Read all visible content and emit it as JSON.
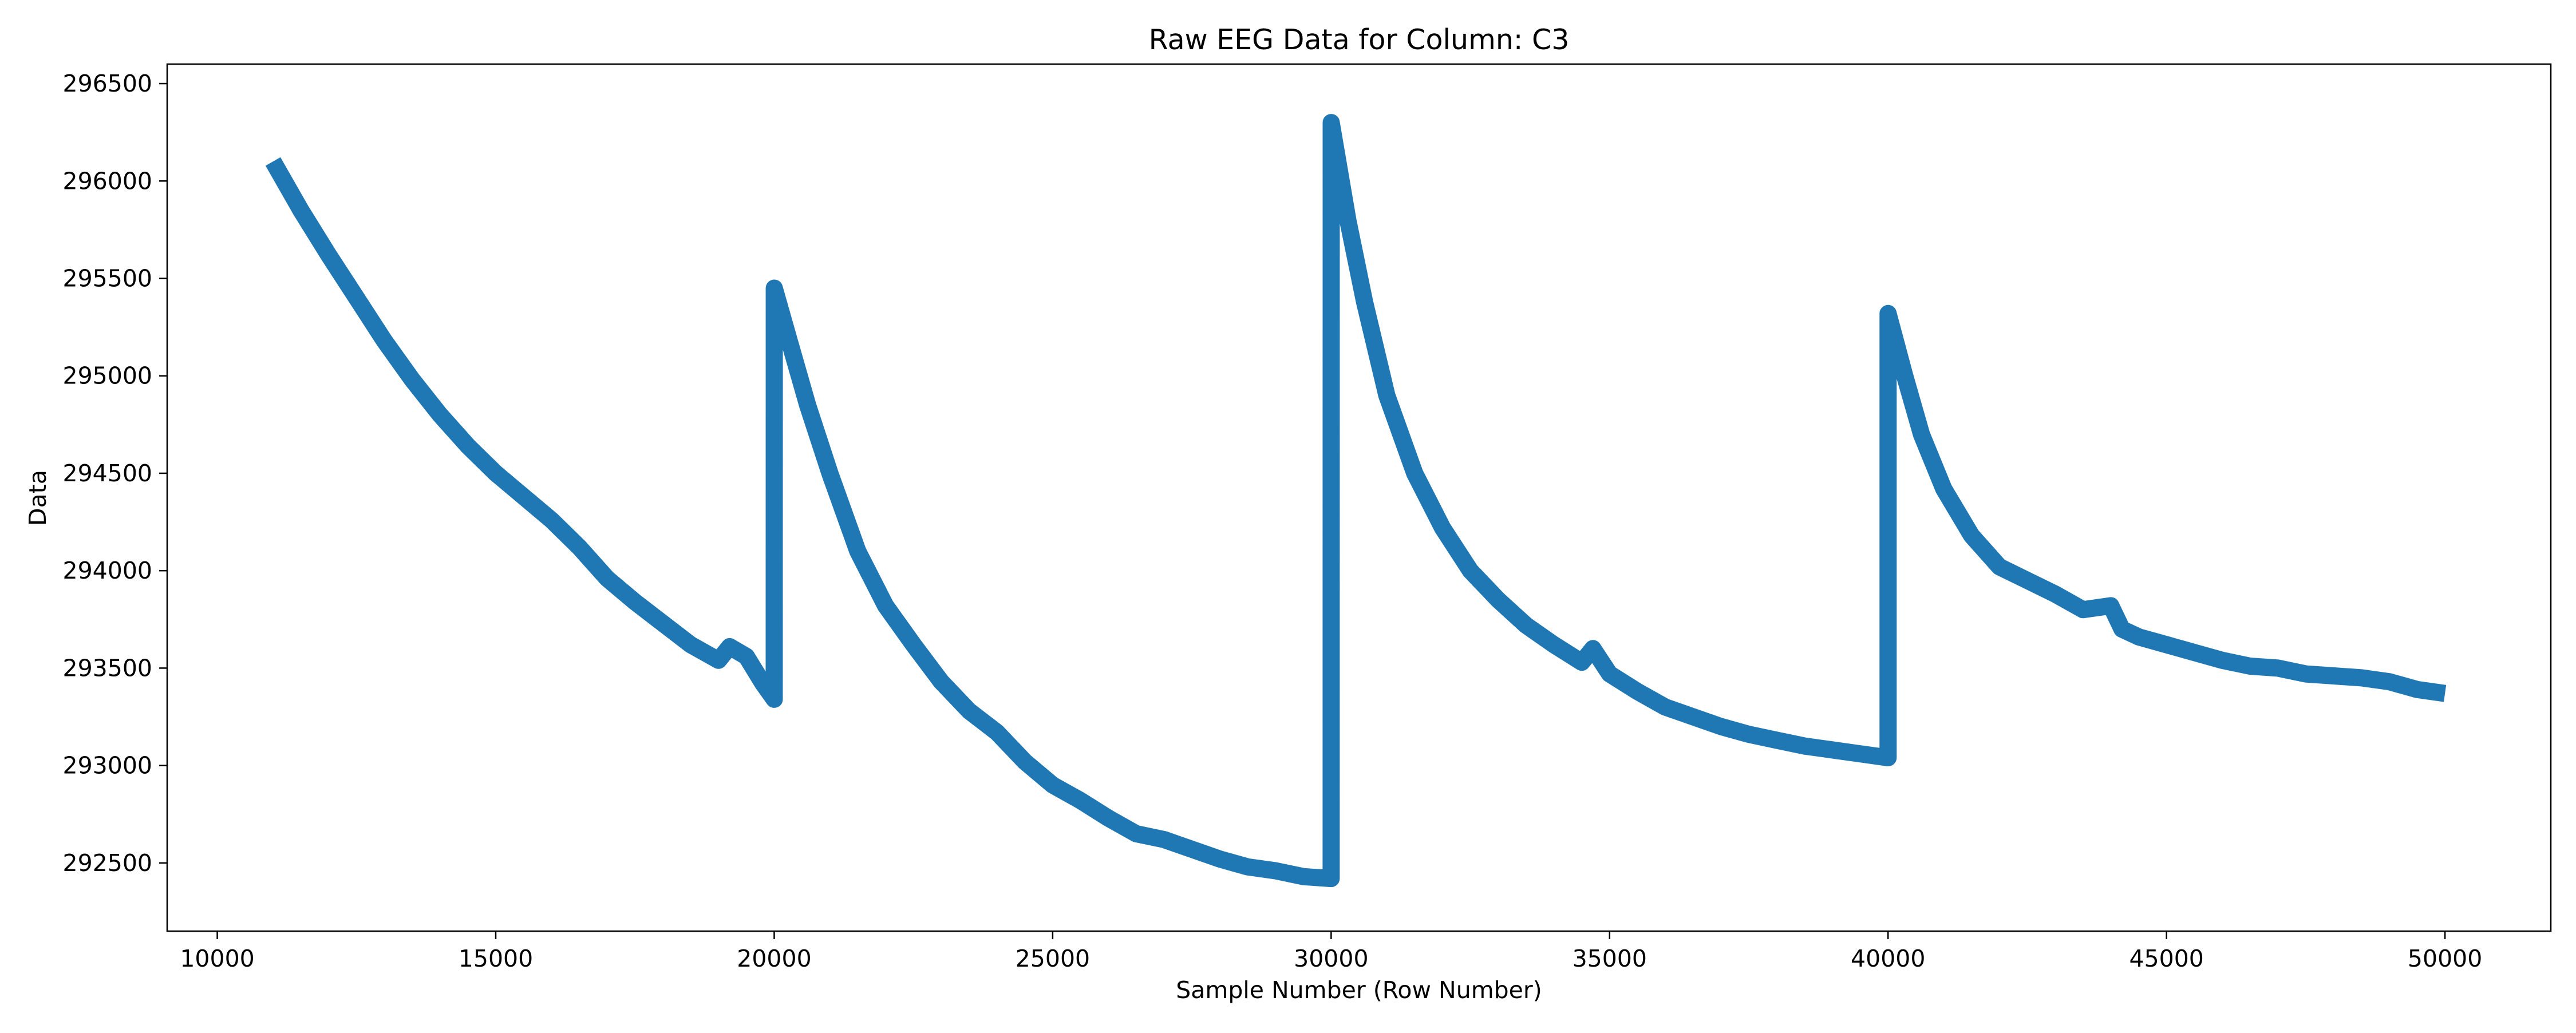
{
  "chart_data": {
    "type": "line",
    "title": "Raw EEG Data for Column: C3",
    "xlabel": "Sample Number (Row Number)",
    "ylabel": "Data",
    "xlim": [
      9100,
      51900
    ],
    "ylim": [
      292150,
      296600
    ],
    "x_ticks": [
      10000,
      15000,
      20000,
      25000,
      30000,
      35000,
      40000,
      45000,
      50000
    ],
    "y_ticks": [
      292500,
      293000,
      293500,
      294000,
      294500,
      295000,
      295500,
      296000,
      296500
    ],
    "grid": false,
    "line_color": "#1f77b4",
    "series": [
      {
        "x": [
          11000,
          11500,
          12000,
          12500,
          13000,
          13500,
          14000,
          14500,
          15000,
          15500,
          16000,
          16500,
          17000,
          17500,
          18000,
          18500,
          19000,
          19200,
          19500,
          19800,
          20000,
          20001,
          20300,
          20600,
          21000,
          21500,
          22000,
          22500,
          23000,
          23500,
          24000,
          24500,
          25000,
          25500,
          26000,
          26500,
          27000,
          27500,
          28000,
          28500,
          29000,
          29500,
          30000,
          30001,
          30300,
          30600,
          31000,
          31500,
          32000,
          32500,
          33000,
          33500,
          34000,
          34500,
          34700,
          35000,
          35500,
          36000,
          36500,
          37000,
          37500,
          38000,
          38500,
          39000,
          39500,
          40000,
          40001,
          40300,
          40600,
          41000,
          41500,
          42000,
          42500,
          43000,
          43500,
          44000,
          44200,
          44500,
          45000,
          45500,
          46000,
          46500,
          47000,
          47500,
          48000,
          48500,
          49000,
          49500,
          50000
        ],
        "y": [
          296100,
          295850,
          295620,
          295400,
          295180,
          294980,
          294800,
          294640,
          294500,
          294380,
          294260,
          294120,
          293960,
          293840,
          293730,
          293620,
          293540,
          293610,
          293560,
          293420,
          293340,
          295450,
          295150,
          294850,
          294500,
          294100,
          293820,
          293620,
          293430,
          293280,
          293170,
          293020,
          292900,
          292820,
          292730,
          292650,
          292620,
          292570,
          292520,
          292480,
          292460,
          292430,
          292420,
          296300,
          295800,
          295380,
          294900,
          294500,
          294220,
          294000,
          293850,
          293720,
          293620,
          293530,
          293600,
          293470,
          293380,
          293300,
          293250,
          293200,
          293160,
          293130,
          293100,
          293080,
          293060,
          293040,
          295320,
          295000,
          294700,
          294420,
          294180,
          294020,
          293950,
          293880,
          293800,
          293820,
          293700,
          293660,
          293620,
          293580,
          293540,
          293510,
          293500,
          293470,
          293460,
          293450,
          293430,
          293390,
          293370
        ]
      }
    ]
  }
}
